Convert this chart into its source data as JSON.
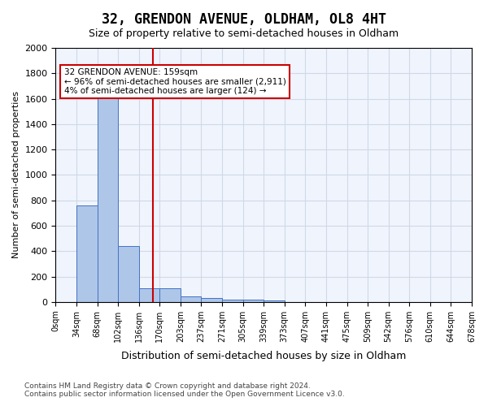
{
  "title": "32, GRENDON AVENUE, OLDHAM, OL8 4HT",
  "subtitle": "Size of property relative to semi-detached houses in Oldham",
  "xlabel": "Distribution of semi-detached houses by size in Oldham",
  "ylabel": "Number of semi-detached properties",
  "footer_line1": "Contains HM Land Registry data © Crown copyright and database right 2024.",
  "footer_line2": "Contains public sector information licensed under the Open Government Licence v3.0.",
  "bin_labels": [
    "0sqm",
    "34sqm",
    "68sqm",
    "102sqm",
    "136sqm",
    "170sqm",
    "203sqm",
    "237sqm",
    "271sqm",
    "305sqm",
    "339sqm",
    "373sqm",
    "407sqm",
    "441sqm",
    "475sqm",
    "509sqm",
    "542sqm",
    "576sqm",
    "610sqm",
    "644sqm",
    "678sqm"
  ],
  "bar_values": [
    0,
    760,
    1640,
    440,
    110,
    110,
    45,
    30,
    20,
    15,
    10,
    0,
    0,
    0,
    0,
    0,
    0,
    0,
    0,
    0
  ],
  "bar_color": "#aec6e8",
  "bar_edge_color": "#4472c4",
  "ylim": [
    0,
    2000
  ],
  "yticks": [
    0,
    200,
    400,
    600,
    800,
    1000,
    1200,
    1400,
    1600,
    1800,
    2000
  ],
  "property_size": 159,
  "bin_width": 34,
  "vline_x": 4.68,
  "annotation_text": "32 GRENDON AVENUE: 159sqm\n← 96% of semi-detached houses are smaller (2,911)\n4% of semi-detached houses are larger (124) →",
  "annotation_box_color": "#ffffff",
  "annotation_box_edge_color": "#cc0000",
  "vline_color": "#cc0000",
  "grid_color": "#d0d8e8",
  "background_color": "#f0f4fc"
}
